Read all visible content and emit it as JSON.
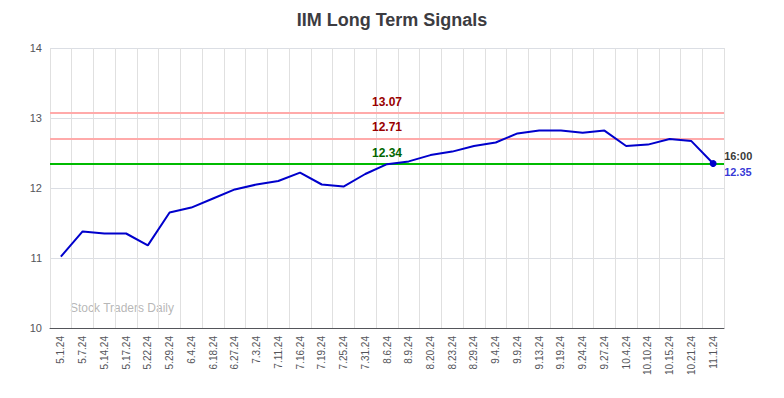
{
  "chart_data": {
    "type": "line",
    "title": "IIM Long Term Signals",
    "categories": [
      "5.1.24",
      "5.7.24",
      "5.14.24",
      "5.17.24",
      "5.22.24",
      "5.29.24",
      "6.4.24",
      "6.18.24",
      "6.27.24",
      "7.3.24",
      "7.11.24",
      "7.16.24",
      "7.19.24",
      "7.25.24",
      "7.31.24",
      "8.6.24",
      "8.9.24",
      "8.20.24",
      "8.23.24",
      "8.29.24",
      "9.4.24",
      "9.9.24",
      "9.13.24",
      "9.19.24",
      "9.24.24",
      "9.27.24",
      "10.4.24",
      "10.10.24",
      "10.15.24",
      "10.21.24",
      "11.1.24"
    ],
    "values": [
      11.02,
      11.38,
      11.35,
      11.35,
      11.18,
      11.65,
      11.72,
      11.85,
      11.98,
      12.05,
      12.1,
      12.22,
      12.05,
      12.02,
      12.2,
      12.34,
      12.38,
      12.47,
      12.52,
      12.6,
      12.65,
      12.78,
      12.82,
      12.82,
      12.79,
      12.82,
      12.6,
      12.62,
      12.7,
      12.67,
      12.35
    ],
    "color": "#0000cc",
    "ylim": [
      10.0,
      14.0
    ],
    "yticks": [
      10,
      11,
      12,
      13,
      14
    ],
    "grid": true,
    "hlines": [
      {
        "value": 12.34,
        "label": "12.34",
        "color": "#00bb00",
        "label_color": "#006600"
      },
      {
        "value": 12.71,
        "label": "12.71",
        "color": "#ffaaaa",
        "label_color": "#990000"
      },
      {
        "value": 13.07,
        "label": "13.07",
        "color": "#ffaaaa",
        "label_color": "#990000"
      }
    ],
    "annotations": [
      {
        "text": "16:00",
        "x": "11.1.24",
        "y": 12.35,
        "color": "#000000"
      },
      {
        "text": "12.35",
        "x": "11.1.24",
        "y": 12.35,
        "color": "#0000cc"
      }
    ],
    "watermark": "Stock Traders Daily"
  }
}
